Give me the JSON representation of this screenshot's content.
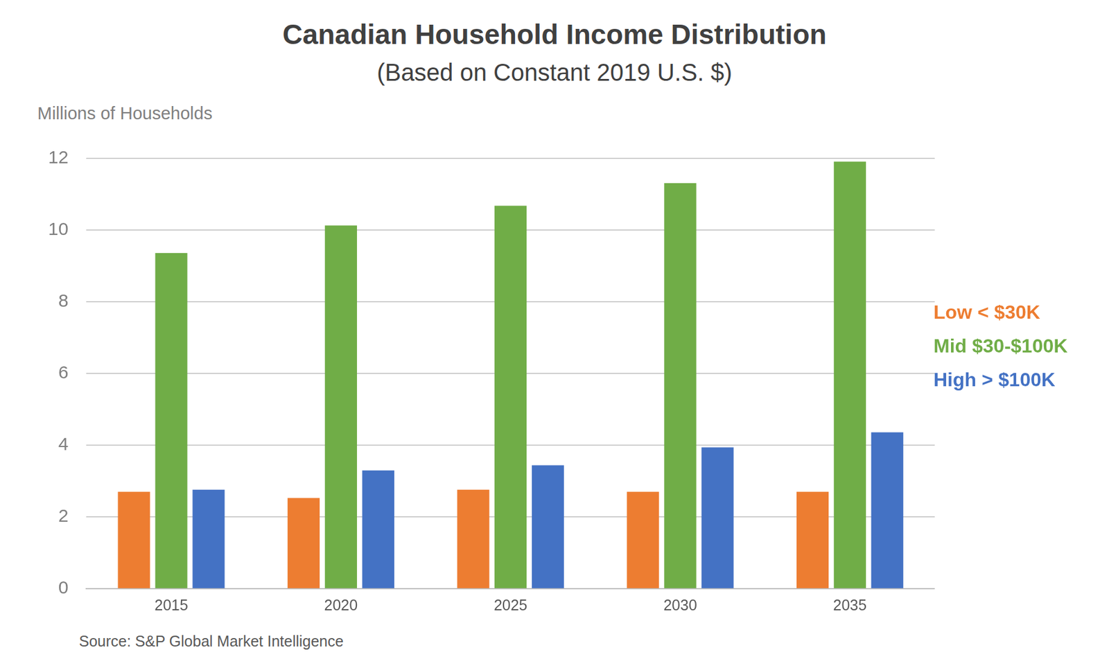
{
  "chart_data": {
    "type": "bar",
    "title": "Canadian Household Income Distribution",
    "subtitle": "(Based on Constant 2019 U.S. $)",
    "ylabel": "Millions of Households",
    "note": "Source: S&P Global Market Intelligence",
    "categories": [
      "2015",
      "2020",
      "2025",
      "2030",
      "2035"
    ],
    "series": [
      {
        "name": "Low < $30K",
        "color": "#ed7d31",
        "values": [
          2.7,
          2.53,
          2.76,
          2.7,
          2.7
        ]
      },
      {
        "name": "Mid $30-$100K",
        "color": "#70ad47",
        "values": [
          9.36,
          10.13,
          10.68,
          11.31,
          11.91
        ]
      },
      {
        "name": "High > $100K",
        "color": "#4472c4",
        "values": [
          2.76,
          3.3,
          3.44,
          3.94,
          4.36
        ]
      }
    ],
    "ylim": [
      0,
      12
    ],
    "yticks": [
      0,
      2,
      4,
      6,
      8,
      10,
      12
    ],
    "grid": true,
    "legend": "right"
  }
}
